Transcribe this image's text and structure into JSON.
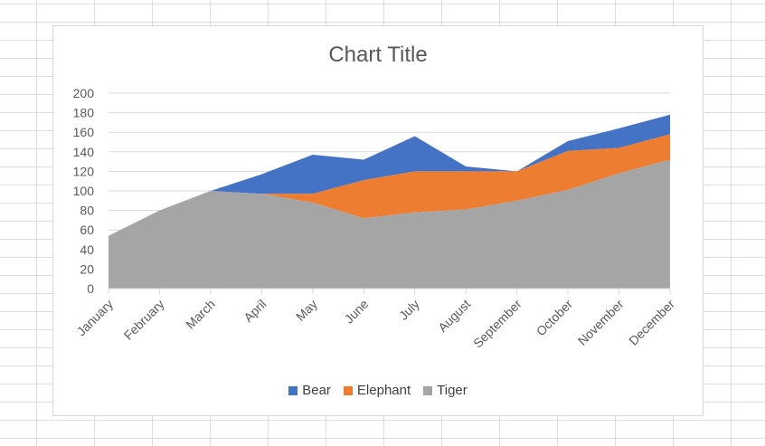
{
  "chart_data": {
    "type": "area",
    "stacked": true,
    "title": "Chart Title",
    "categories": [
      "January",
      "February",
      "March",
      "April",
      "May",
      "June",
      "July",
      "August",
      "September",
      "October",
      "November",
      "December"
    ],
    "ylim": [
      0,
      200
    ],
    "yticks": [
      0,
      20,
      40,
      60,
      80,
      100,
      120,
      140,
      160,
      180,
      200
    ],
    "grid": true,
    "legend_position": "bottom",
    "series": [
      {
        "name": "Tiger",
        "color": "#a5a5a5",
        "values": [
          54,
          80,
          100,
          97,
          88,
          72,
          78,
          81,
          90,
          101,
          118,
          132
        ]
      },
      {
        "name": "Elephant",
        "color": "#ed7d31",
        "values": [
          0,
          0,
          0,
          0,
          9,
          39,
          42,
          39,
          30,
          40,
          26,
          26
        ]
      },
      {
        "name": "Bear",
        "color": "#4472c4",
        "values": [
          0,
          0,
          0,
          20,
          40,
          21,
          36,
          5,
          0,
          10,
          20,
          20
        ]
      }
    ],
    "legend_order": [
      "Bear",
      "Elephant",
      "Tiger"
    ]
  }
}
